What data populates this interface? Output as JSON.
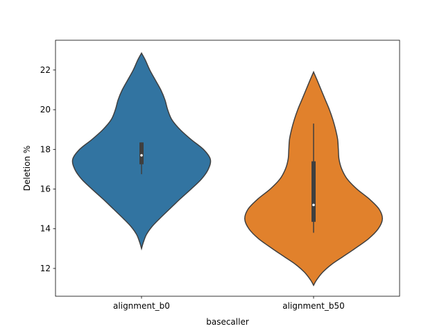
{
  "chart_data": {
    "type": "violin",
    "title": "",
    "xlabel": "basecaller",
    "ylabel": "Deletion %",
    "categories": [
      "alignment_b0",
      "alignment_b50"
    ],
    "ylim": [
      10.6,
      23.5
    ],
    "yticks": [
      12,
      14,
      16,
      18,
      20,
      22
    ],
    "grid": false,
    "legend": "none",
    "colors": [
      "#3274a1",
      "#e1812c"
    ],
    "series": [
      {
        "category": "alignment_b0",
        "color": "#3274a1",
        "min": 13.0,
        "max": 22.85,
        "box": {
          "q1": 17.25,
          "median": 17.7,
          "q3": 18.35,
          "whisker_low": 16.75,
          "whisker_high": 18.35
        },
        "profile": [
          [
            13.0,
            0.0
          ],
          [
            13.3,
            0.025
          ],
          [
            13.7,
            0.07
          ],
          [
            14.1,
            0.15
          ],
          [
            14.5,
            0.26
          ],
          [
            15.0,
            0.41
          ],
          [
            15.5,
            0.56
          ],
          [
            16.0,
            0.72
          ],
          [
            16.5,
            0.87
          ],
          [
            17.0,
            0.97
          ],
          [
            17.5,
            1.0
          ],
          [
            18.0,
            0.9
          ],
          [
            18.5,
            0.72
          ],
          [
            19.0,
            0.56
          ],
          [
            19.5,
            0.44
          ],
          [
            20.0,
            0.38
          ],
          [
            20.5,
            0.34
          ],
          [
            21.0,
            0.28
          ],
          [
            21.5,
            0.2
          ],
          [
            22.0,
            0.12
          ],
          [
            22.5,
            0.055
          ],
          [
            22.85,
            0.0
          ]
        ]
      },
      {
        "category": "alignment_b50",
        "color": "#e1812c",
        "min": 11.15,
        "max": 21.9,
        "box": {
          "q1": 14.35,
          "median": 15.2,
          "q3": 17.4,
          "whisker_low": 13.8,
          "whisker_high": 19.3
        },
        "profile": [
          [
            11.15,
            0.0
          ],
          [
            11.4,
            0.04
          ],
          [
            11.8,
            0.13
          ],
          [
            12.2,
            0.26
          ],
          [
            12.6,
            0.43
          ],
          [
            13.0,
            0.6
          ],
          [
            13.5,
            0.8
          ],
          [
            14.0,
            0.94
          ],
          [
            14.5,
            1.0
          ],
          [
            15.0,
            0.95
          ],
          [
            15.5,
            0.81
          ],
          [
            16.0,
            0.63
          ],
          [
            16.5,
            0.49
          ],
          [
            17.0,
            0.41
          ],
          [
            17.5,
            0.37
          ],
          [
            18.0,
            0.36
          ],
          [
            18.5,
            0.35
          ],
          [
            19.0,
            0.32
          ],
          [
            19.5,
            0.28
          ],
          [
            20.0,
            0.23
          ],
          [
            20.5,
            0.17
          ],
          [
            21.0,
            0.11
          ],
          [
            21.5,
            0.05
          ],
          [
            21.9,
            0.0
          ]
        ]
      }
    ]
  }
}
